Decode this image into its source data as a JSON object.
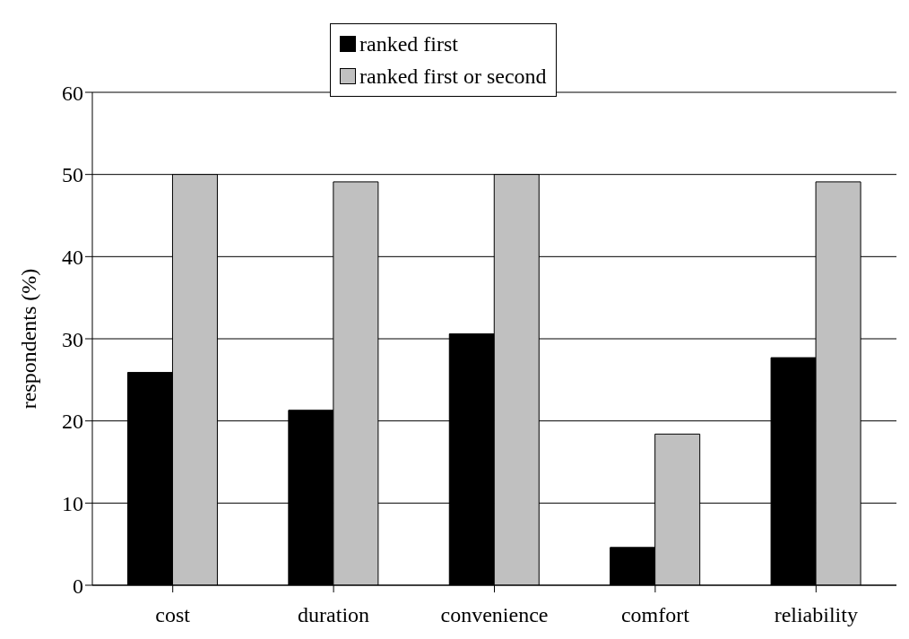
{
  "chart_data": {
    "type": "bar",
    "ylabel": "respondents (%)",
    "categories": [
      "cost",
      "duration",
      "convenience",
      "comfort",
      "reliability"
    ],
    "series": [
      {
        "name": "ranked first",
        "color": "#000000",
        "values": [
          25.9,
          21.3,
          30.6,
          4.6,
          27.7
        ]
      },
      {
        "name": "ranked first or second",
        "color": "#c0c0c0",
        "values": [
          50,
          49.1,
          50,
          18.4,
          49.1
        ]
      }
    ],
    "ylim": [
      0,
      60
    ],
    "yticks": [
      0,
      10,
      20,
      30,
      40,
      50,
      60
    ],
    "grid": "y",
    "legend": "top"
  }
}
